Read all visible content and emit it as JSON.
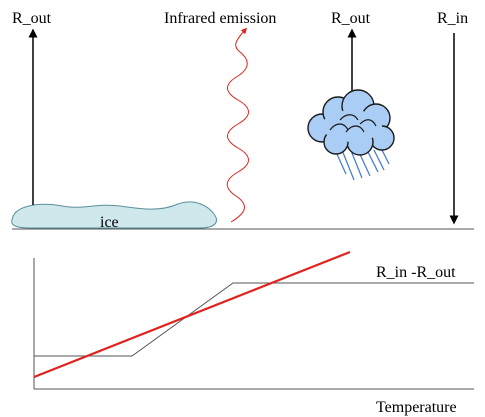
{
  "diagram": {
    "labels": {
      "r_out_left": "R_out",
      "infrared": "Infrared emission",
      "r_out_right": "R_out",
      "r_in": "R_in",
      "ice": "ice",
      "net": "R_in -R_out",
      "xaxis": "Temperature"
    }
  },
  "colors": {
    "ice_fill": "#cfe8ec",
    "cloud_fill": "#a9cdf4",
    "rain": "#4a7fd0",
    "red": "#e0231e",
    "line": "#000000",
    "gray": "#555555"
  }
}
